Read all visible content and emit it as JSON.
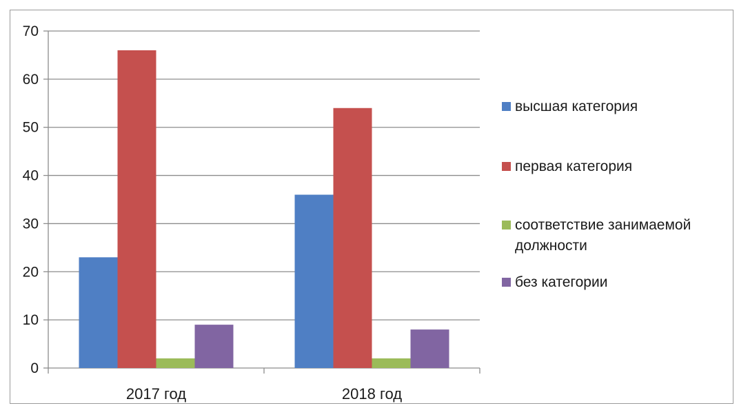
{
  "chart_data": {
    "type": "bar",
    "categories": [
      "2017 год",
      "2018 год"
    ],
    "series": [
      {
        "name": "высшая категория",
        "values": [
          23,
          36
        ],
        "color": "#4f7fc4"
      },
      {
        "name": "первая категория",
        "values": [
          66,
          54
        ],
        "color": "#c5504e"
      },
      {
        "name": "соответствие занимаемой должности",
        "values": [
          2,
          2
        ],
        "color": "#9bbb59"
      },
      {
        "name": "без категории",
        "values": [
          9,
          8
        ],
        "color": "#8165a2"
      }
    ],
    "ylim": [
      0,
      70
    ],
    "yticks": [
      0,
      10,
      20,
      30,
      40,
      50,
      60,
      70
    ],
    "grid": true,
    "legend_position": "right"
  }
}
